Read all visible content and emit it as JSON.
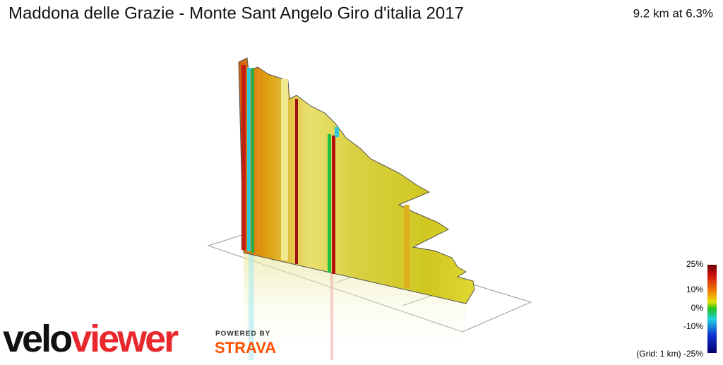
{
  "header": {
    "title": "Maddona delle Grazie - Monte Sant Angelo Giro d'italia 2017",
    "stats": "9.2 km at 6.3%"
  },
  "legend": {
    "ticks": [
      "25%",
      "10%",
      "0%",
      "-10%",
      "-25%"
    ],
    "grid_note": "(Grid: 1 km)"
  },
  "branding": {
    "logo_part1": "velo",
    "logo_part2": "viewer",
    "powered_by": "POWERED BY",
    "strava": "STRAVA"
  }
}
